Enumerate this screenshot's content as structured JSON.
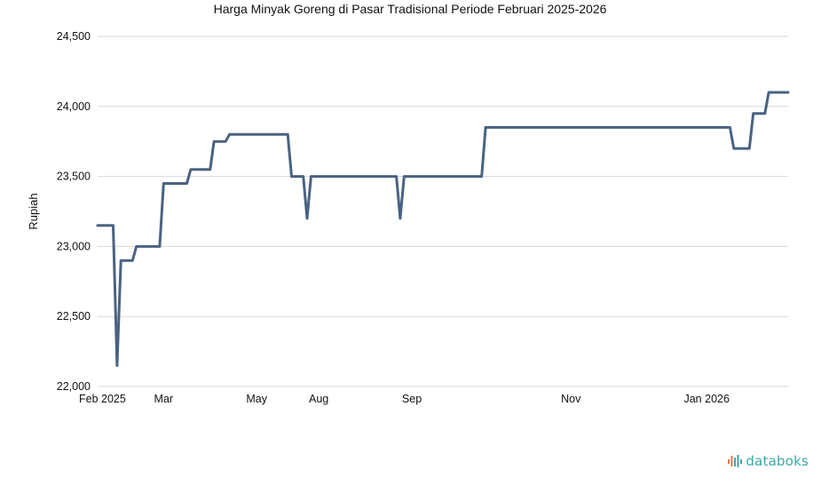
{
  "chart_data": {
    "type": "line",
    "title": "Harga Minyak Goreng di Pasar Tradisional Periode Februari 2025-2026",
    "xlabel": "",
    "ylabel": "Rupiah",
    "ylim": [
      22000,
      24500
    ],
    "yticks": [
      22000,
      22500,
      23000,
      23500,
      24000,
      24500
    ],
    "ytick_labels": [
      "22,000",
      "22,500",
      "23,000",
      "23,500",
      "24,000",
      "24,500"
    ],
    "xticks": [
      {
        "label": "Feb 2025",
        "index": 0
      },
      {
        "label": "Mar",
        "index": 17
      },
      {
        "label": "May",
        "index": 41
      },
      {
        "label": "Aug",
        "index": 57
      },
      {
        "label": "Sep",
        "index": 81
      },
      {
        "label": "Nov",
        "index": 122
      },
      {
        "label": "Jan 2026",
        "index": 157
      }
    ],
    "x_count": 179,
    "grid": true,
    "series": [
      {
        "color": "#4a6282",
        "points": [
          [
            0,
            23150
          ],
          [
            4,
            23150
          ],
          [
            5,
            22150
          ],
          [
            6,
            22900
          ],
          [
            9,
            22900
          ],
          [
            10,
            23000
          ],
          [
            16,
            23000
          ],
          [
            17,
            23450
          ],
          [
            23,
            23450
          ],
          [
            24,
            23550
          ],
          [
            29,
            23550
          ],
          [
            30,
            23750
          ],
          [
            33,
            23750
          ],
          [
            34,
            23800
          ],
          [
            49,
            23800
          ],
          [
            50,
            23500
          ],
          [
            53,
            23500
          ],
          [
            54,
            23200
          ],
          [
            55,
            23500
          ],
          [
            77,
            23500
          ],
          [
            78,
            23200
          ],
          [
            79,
            23500
          ],
          [
            99,
            23500
          ],
          [
            100,
            23850
          ],
          [
            163,
            23850
          ],
          [
            164,
            23700
          ],
          [
            168,
            23700
          ],
          [
            169,
            23950
          ],
          [
            172,
            23950
          ],
          [
            173,
            24100
          ],
          [
            178,
            24100
          ]
        ]
      }
    ]
  },
  "branding": {
    "logo_text": "databoks",
    "logo_color": "#3aa7a4",
    "logo_icon": "bar-signal-icon",
    "logo_icon_colors": [
      "#e8744a",
      "#3aa7a4"
    ]
  }
}
